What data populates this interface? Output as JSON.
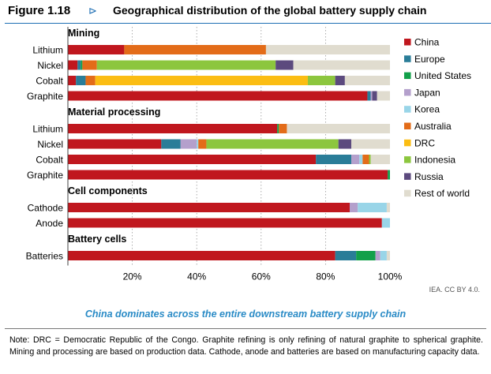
{
  "figure": {
    "number": "Figure 1.18",
    "arrow": "⊳",
    "title": "Geographical distribution of the global battery supply chain"
  },
  "credit": "IEA. CC BY 4.0.",
  "subtitle": "China dominates across the entire downstream battery supply chain",
  "note": "Note: DRC = Democratic Republic of the Congo. Graphite refining is only refining of natural graphite to spherical graphite. Mining and processing are based on production data. Cathode, anode and batteries are based on manufacturing capacity data.",
  "chart_data": {
    "type": "bar",
    "orientation": "horizontal",
    "stacked": true,
    "xlim": [
      0,
      100
    ],
    "x_ticks": [
      {
        "value": 20,
        "label": "20%"
      },
      {
        "value": 40,
        "label": "40%"
      },
      {
        "value": 60,
        "label": "60%"
      },
      {
        "value": 80,
        "label": "80%"
      },
      {
        "value": 100,
        "label": "100%"
      }
    ],
    "grid": "vertical dotted",
    "legend_position": "right",
    "series": [
      {
        "name": "China",
        "color": "#c0171e"
      },
      {
        "name": "Europe",
        "color": "#2a7d98"
      },
      {
        "name": "United States",
        "color": "#12a04a"
      },
      {
        "name": "Japan",
        "color": "#b4a0cc"
      },
      {
        "name": "Korea",
        "color": "#99d5e8"
      },
      {
        "name": "Australia",
        "color": "#e36c19"
      },
      {
        "name": "DRC",
        "color": "#fbbd13"
      },
      {
        "name": "Indonesia",
        "color": "#8cc63e"
      },
      {
        "name": "Russia",
        "color": "#5c4a7e"
      },
      {
        "name": "Rest of world",
        "color": "#e0dccf"
      }
    ],
    "groups": [
      {
        "title": "Mining",
        "rows": [
          {
            "label": "Lithium",
            "values": {
              "China": 17.5,
              "Australia": 44,
              "Rest of world": 38.5
            }
          },
          {
            "label": "Nickel",
            "values": {
              "China": 3,
              "Europe": 1,
              "United States": 0.5,
              "Australia": 4.5,
              "Indonesia": 55.5,
              "Russia": 5.5,
              "Rest of world": 30
            }
          },
          {
            "label": "Cobalt",
            "values": {
              "China": 2.5,
              "Europe": 3,
              "Australia": 3,
              "DRC": 66,
              "Indonesia": 8.5,
              "Russia": 3,
              "Rest of world": 14
            }
          },
          {
            "label": "Graphite",
            "values": {
              "China": 93,
              "Europe": 1,
              "Japan": 0.5,
              "Russia": 1.5,
              "Rest of world": 4
            }
          }
        ]
      },
      {
        "title": "Material processing",
        "rows": [
          {
            "label": "Lithium",
            "values": {
              "China": 65,
              "United States": 0.5,
              "Australia": 2.5,
              "Rest of world": 32
            }
          },
          {
            "label": "Nickel",
            "values": {
              "China": 29,
              "Europe": 6,
              "Japan": 5,
              "Korea": 0.5,
              "Australia": 2.5,
              "Indonesia": 41,
              "Russia": 4,
              "Rest of world": 12
            }
          },
          {
            "label": "Cobalt",
            "values": {
              "China": 77,
              "Europe": 11,
              "Japan": 2.5,
              "Korea": 1,
              "Australia": 2,
              "Indonesia": 0.5,
              "Rest of world": 6
            }
          },
          {
            "label": "Graphite",
            "values": {
              "China": 99.3,
              "United States": 0.7
            }
          }
        ]
      },
      {
        "title": "Cell components",
        "rows": [
          {
            "label": "Cathode",
            "values": {
              "China": 87.5,
              "Japan": 2.5,
              "Korea": 9,
              "Rest of world": 1
            }
          },
          {
            "label": "Anode",
            "values": {
              "China": 97.5,
              "Korea": 2.5
            }
          }
        ]
      },
      {
        "title": "Battery cells",
        "rows": [
          {
            "label": "Batteries",
            "values": {
              "China": 83,
              "Europe": 6.5,
              "United States": 6,
              "Japan": 1.5,
              "Korea": 2,
              "Rest of world": 1
            }
          }
        ]
      }
    ]
  }
}
